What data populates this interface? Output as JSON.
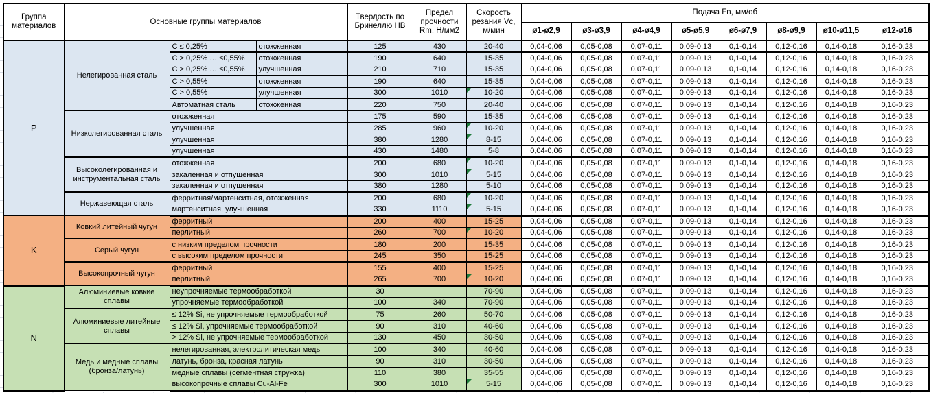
{
  "table": {
    "headers": {
      "group": "Группа материалов",
      "main": "Основные группы материалов",
      "hardness": "Твердость по Бринеллю НВ",
      "strength": "Предел прочности Rm, Н/мм2",
      "speed": "Скорость резания Vc, м/мин",
      "feed_title": "Подача Fn, мм/об",
      "feed_cols": [
        "ø1-ø2,9",
        "ø3-ø3,9",
        "ø4-ø4,9",
        "ø5-ø5,9",
        "ø6-ø7,9",
        "ø8-ø9,9",
        "ø10-ø11,5",
        "ø12-ø16"
      ]
    },
    "feed_values": [
      "0,04-0,06",
      "0,05-0,08",
      "0,07-0,11",
      "0,09-0,13",
      "0,1-0,14",
      "0,12-0,16",
      "0,14-0,18",
      "0,16-0,23"
    ],
    "colors": {
      "p": "#dce6f1",
      "k": "#f4b083",
      "n": "#c6e0b4",
      "flag": "#1e7b3a",
      "border": "#000000"
    },
    "groups": [
      {
        "code": "P",
        "color": "#dce6f1",
        "subgroups": [
          {
            "name": "Нелегированная сталь",
            "rows": [
              {
                "spec": "C ≤ 0,25%",
                "cond": "отожженная",
                "hb": "125",
                "rm": "430",
                "vc": "20-40",
                "div": true
              },
              {
                "spec": "C > 0,25% … ≤0,55%",
                "cond": "отожженная",
                "hb": "190",
                "rm": "640",
                "vc": "15-35"
              },
              {
                "spec": "C > 0,25% … ≤0,55%",
                "cond": "улучшенная",
                "hb": "210",
                "rm": "710",
                "vc": "15-35",
                "div": true
              },
              {
                "spec": "C > 0,55%",
                "cond": "отожженная",
                "hb": "190",
                "rm": "640",
                "vc": "15-35"
              },
              {
                "spec": "C > 0,55%",
                "cond": "улучшенная",
                "hb": "300",
                "rm": "1010",
                "vc": "10-20",
                "flag": true,
                "div": true
              },
              {
                "spec": "Автоматная сталь",
                "cond": "отожженная",
                "hb": "220",
                "rm": "750",
                "vc": "20-40"
              }
            ]
          },
          {
            "name": "Низколегированная сталь",
            "rows": [
              {
                "spec": "отожженная",
                "hb": "175",
                "rm": "590",
                "vc": "15-35"
              },
              {
                "spec": "улучшенная",
                "hb": "285",
                "rm": "960",
                "vc": "10-20",
                "flag": true
              },
              {
                "spec": "улучшенная",
                "hb": "380",
                "rm": "1280",
                "vc": "8-15",
                "flag": true
              },
              {
                "spec": "улучшенная",
                "hb": "430",
                "rm": "1480",
                "vc": "5-8"
              }
            ]
          },
          {
            "name": "Высоколегированная и инструментальная сталь",
            "rows": [
              {
                "spec": "отожженная",
                "hb": "200",
                "rm": "680",
                "vc": "10-20",
                "flag": true
              },
              {
                "spec": "закаленная и отпущенная",
                "hb": "300",
                "rm": "1010",
                "vc": "5-15",
                "flag": true
              },
              {
                "spec": "закаленная и отпущенная",
                "hb": "380",
                "rm": "1280",
                "vc": "5-10"
              }
            ]
          },
          {
            "name": "Нержавеющая сталь",
            "rows": [
              {
                "spec": "ферритная/мартенситная, отожженная",
                "hb": "200",
                "rm": "680",
                "vc": "10-20",
                "flag": true
              },
              {
                "spec": "мартенситная, улучшенная",
                "hb": "330",
                "rm": "1110",
                "vc": "5-15",
                "flag": true
              }
            ]
          }
        ]
      },
      {
        "code": "K",
        "color": "#f4b083",
        "subgroups": [
          {
            "name": "Ковкий литейный чугун",
            "rows": [
              {
                "spec": "ферритный",
                "hb": "200",
                "rm": "400",
                "vc": "15-25"
              },
              {
                "spec": "перлитный",
                "hb": "260",
                "rm": "700",
                "vc": "10-20",
                "flag": true
              }
            ]
          },
          {
            "name": "Серый чугун",
            "rows": [
              {
                "spec": "с низким пределом прочности",
                "hb": "180",
                "rm": "200",
                "vc": "15-35"
              },
              {
                "spec": "с высоким пределом прочности",
                "hb": "245",
                "rm": "350",
                "vc": "15-25"
              }
            ]
          },
          {
            "name": "Высокопрочный чугун",
            "rows": [
              {
                "spec": "ферритный",
                "hb": "155",
                "rm": "400",
                "vc": "15-25"
              },
              {
                "spec": "перлитный",
                "hb": "265",
                "rm": "700",
                "vc": "10-20",
                "flag": true
              }
            ]
          }
        ]
      },
      {
        "code": "N",
        "color": "#c6e0b4",
        "subgroups": [
          {
            "name": "Алюминиевые ковкие сплавы",
            "rows": [
              {
                "spec": "неупрочняемые термообработкой",
                "hb": "30",
                "rm": "",
                "vc": "70-90"
              },
              {
                "spec": "упрочняемые термообработкой",
                "hb": "100",
                "rm": "340",
                "vc": "70-90"
              }
            ]
          },
          {
            "name": "Алюминиевые литейные сплавы",
            "rows": [
              {
                "spec": "≤ 12% Si, не упрочняемые термообработкой",
                "hb": "75",
                "rm": "260",
                "vc": "50-70"
              },
              {
                "spec": "≤ 12% Si, упрочняемые термообработкой",
                "hb": "90",
                "rm": "310",
                "vc": "40-60"
              },
              {
                "spec": "> 12% Si, не упрочняемые термообработкой",
                "hb": "130",
                "rm": "450",
                "vc": "30-50"
              }
            ]
          },
          {
            "name": "Медь и медные сплавы (бронза/латунь)",
            "rows": [
              {
                "spec": "нелегированная, электролитическая медь",
                "hb": "100",
                "rm": "340",
                "vc": "40-60"
              },
              {
                "spec": "латунь, бронза, красная латунь",
                "hb": "90",
                "rm": "310",
                "vc": "30-50"
              },
              {
                "spec": "медные сплавы (сегментная стружка)",
                "hb": "110",
                "rm": "380",
                "vc": "35-55"
              },
              {
                "spec": "высокопрочные сплавы Cu-Al-Fe",
                "hb": "300",
                "rm": "1010",
                "vc": "5-15",
                "flag": true
              }
            ]
          }
        ]
      }
    ]
  }
}
